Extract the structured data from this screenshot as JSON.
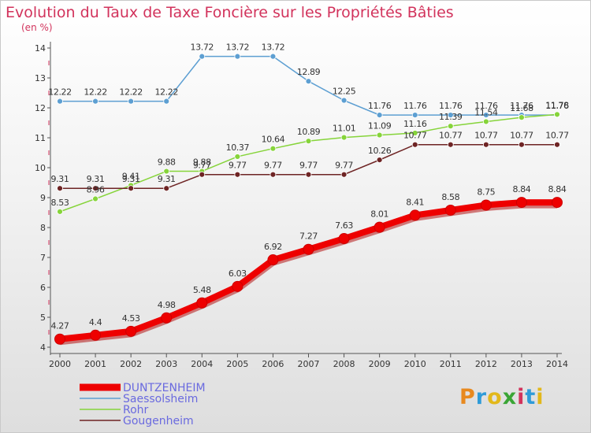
{
  "title": "Evolution du Taux de Taxe Foncière sur les Propriétés Bâties",
  "subtitle": "(en %)",
  "logo": {
    "text": "Proxiti",
    "colors": [
      "#e8891e",
      "#2f9bd8",
      "#e2b81b",
      "#3aa535",
      "#d2335c",
      "#2f9bd8",
      "#e2b81b"
    ]
  },
  "colors": {
    "title": "#d2335c",
    "dashed_tick": "#d2335c",
    "legend_text": "#6a6adf"
  },
  "chart_data": {
    "type": "line",
    "title": "Evolution du Taux de Taxe Foncière sur les Propriétés Bâties",
    "ylabel": "(en %)",
    "xlabel": "",
    "ylim": [
      4,
      14
    ],
    "yticks": [
      4,
      5,
      6,
      7,
      8,
      9,
      10,
      11,
      12,
      13,
      14
    ],
    "x": [
      2000,
      2001,
      2002,
      2003,
      2004,
      2005,
      2006,
      2007,
      2008,
      2009,
      2010,
      2011,
      2012,
      2013,
      2014
    ],
    "grid": false,
    "legend_position": "bottom-left",
    "series": [
      {
        "name": "DUNTZENHEIM",
        "color": "#ee0000",
        "values": [
          4.27,
          4.4,
          4.53,
          4.98,
          5.48,
          6.03,
          6.92,
          7.27,
          7.63,
          8.01,
          8.41,
          8.58,
          8.75,
          8.84,
          8.84
        ],
        "labels": [
          "4.27",
          "4.4",
          "4.53",
          "4.98",
          "5.48",
          "6.03",
          "6.92",
          "7.27",
          "7.63",
          "8.01",
          "8.41",
          "8.58",
          "8.75",
          "8.84",
          "8.84"
        ]
      },
      {
        "name": "Saessolsheim",
        "color": "#5d9fd2",
        "values": [
          12.22,
          12.22,
          12.22,
          12.22,
          13.72,
          13.72,
          13.72,
          12.89,
          12.25,
          11.76,
          11.76,
          11.76,
          11.76,
          11.76,
          11.76
        ],
        "labels": [
          "12.22",
          "12.22",
          "12.22",
          "12.22",
          "13.72",
          "13.72",
          "13.72",
          "12.89",
          "12.25",
          "11.76",
          "11.76",
          "11.76",
          "11.76",
          "11.76",
          "11.76"
        ]
      },
      {
        "name": "Rohr",
        "color": "#86d43a",
        "values": [
          8.53,
          8.96,
          9.41,
          9.88,
          9.88,
          10.37,
          10.64,
          10.89,
          11.01,
          11.09,
          11.16,
          11.39,
          11.54,
          11.68,
          11.78
        ],
        "labels": [
          "8.53",
          "8.96",
          "9.41",
          "9.88",
          "9.88",
          "10.37",
          "10.64",
          "10.89",
          "11.01",
          "11.09",
          "11.16",
          "11.39",
          "11.54",
          "11.68",
          "11.78"
        ]
      },
      {
        "name": "Gougenheim",
        "color": "#6e2424",
        "values": [
          9.31,
          9.31,
          9.31,
          9.31,
          9.77,
          9.77,
          9.77,
          9.77,
          9.77,
          10.26,
          10.77,
          10.77,
          10.77,
          10.77,
          10.77
        ],
        "labels": [
          "9.31",
          "9.31",
          "9.31",
          "9.31",
          "9.77",
          "9.77",
          "9.77",
          "9.77",
          "9.77",
          "10.26",
          "10.77",
          "10.77",
          "10.77",
          "10.77",
          "10.77"
        ]
      }
    ]
  }
}
